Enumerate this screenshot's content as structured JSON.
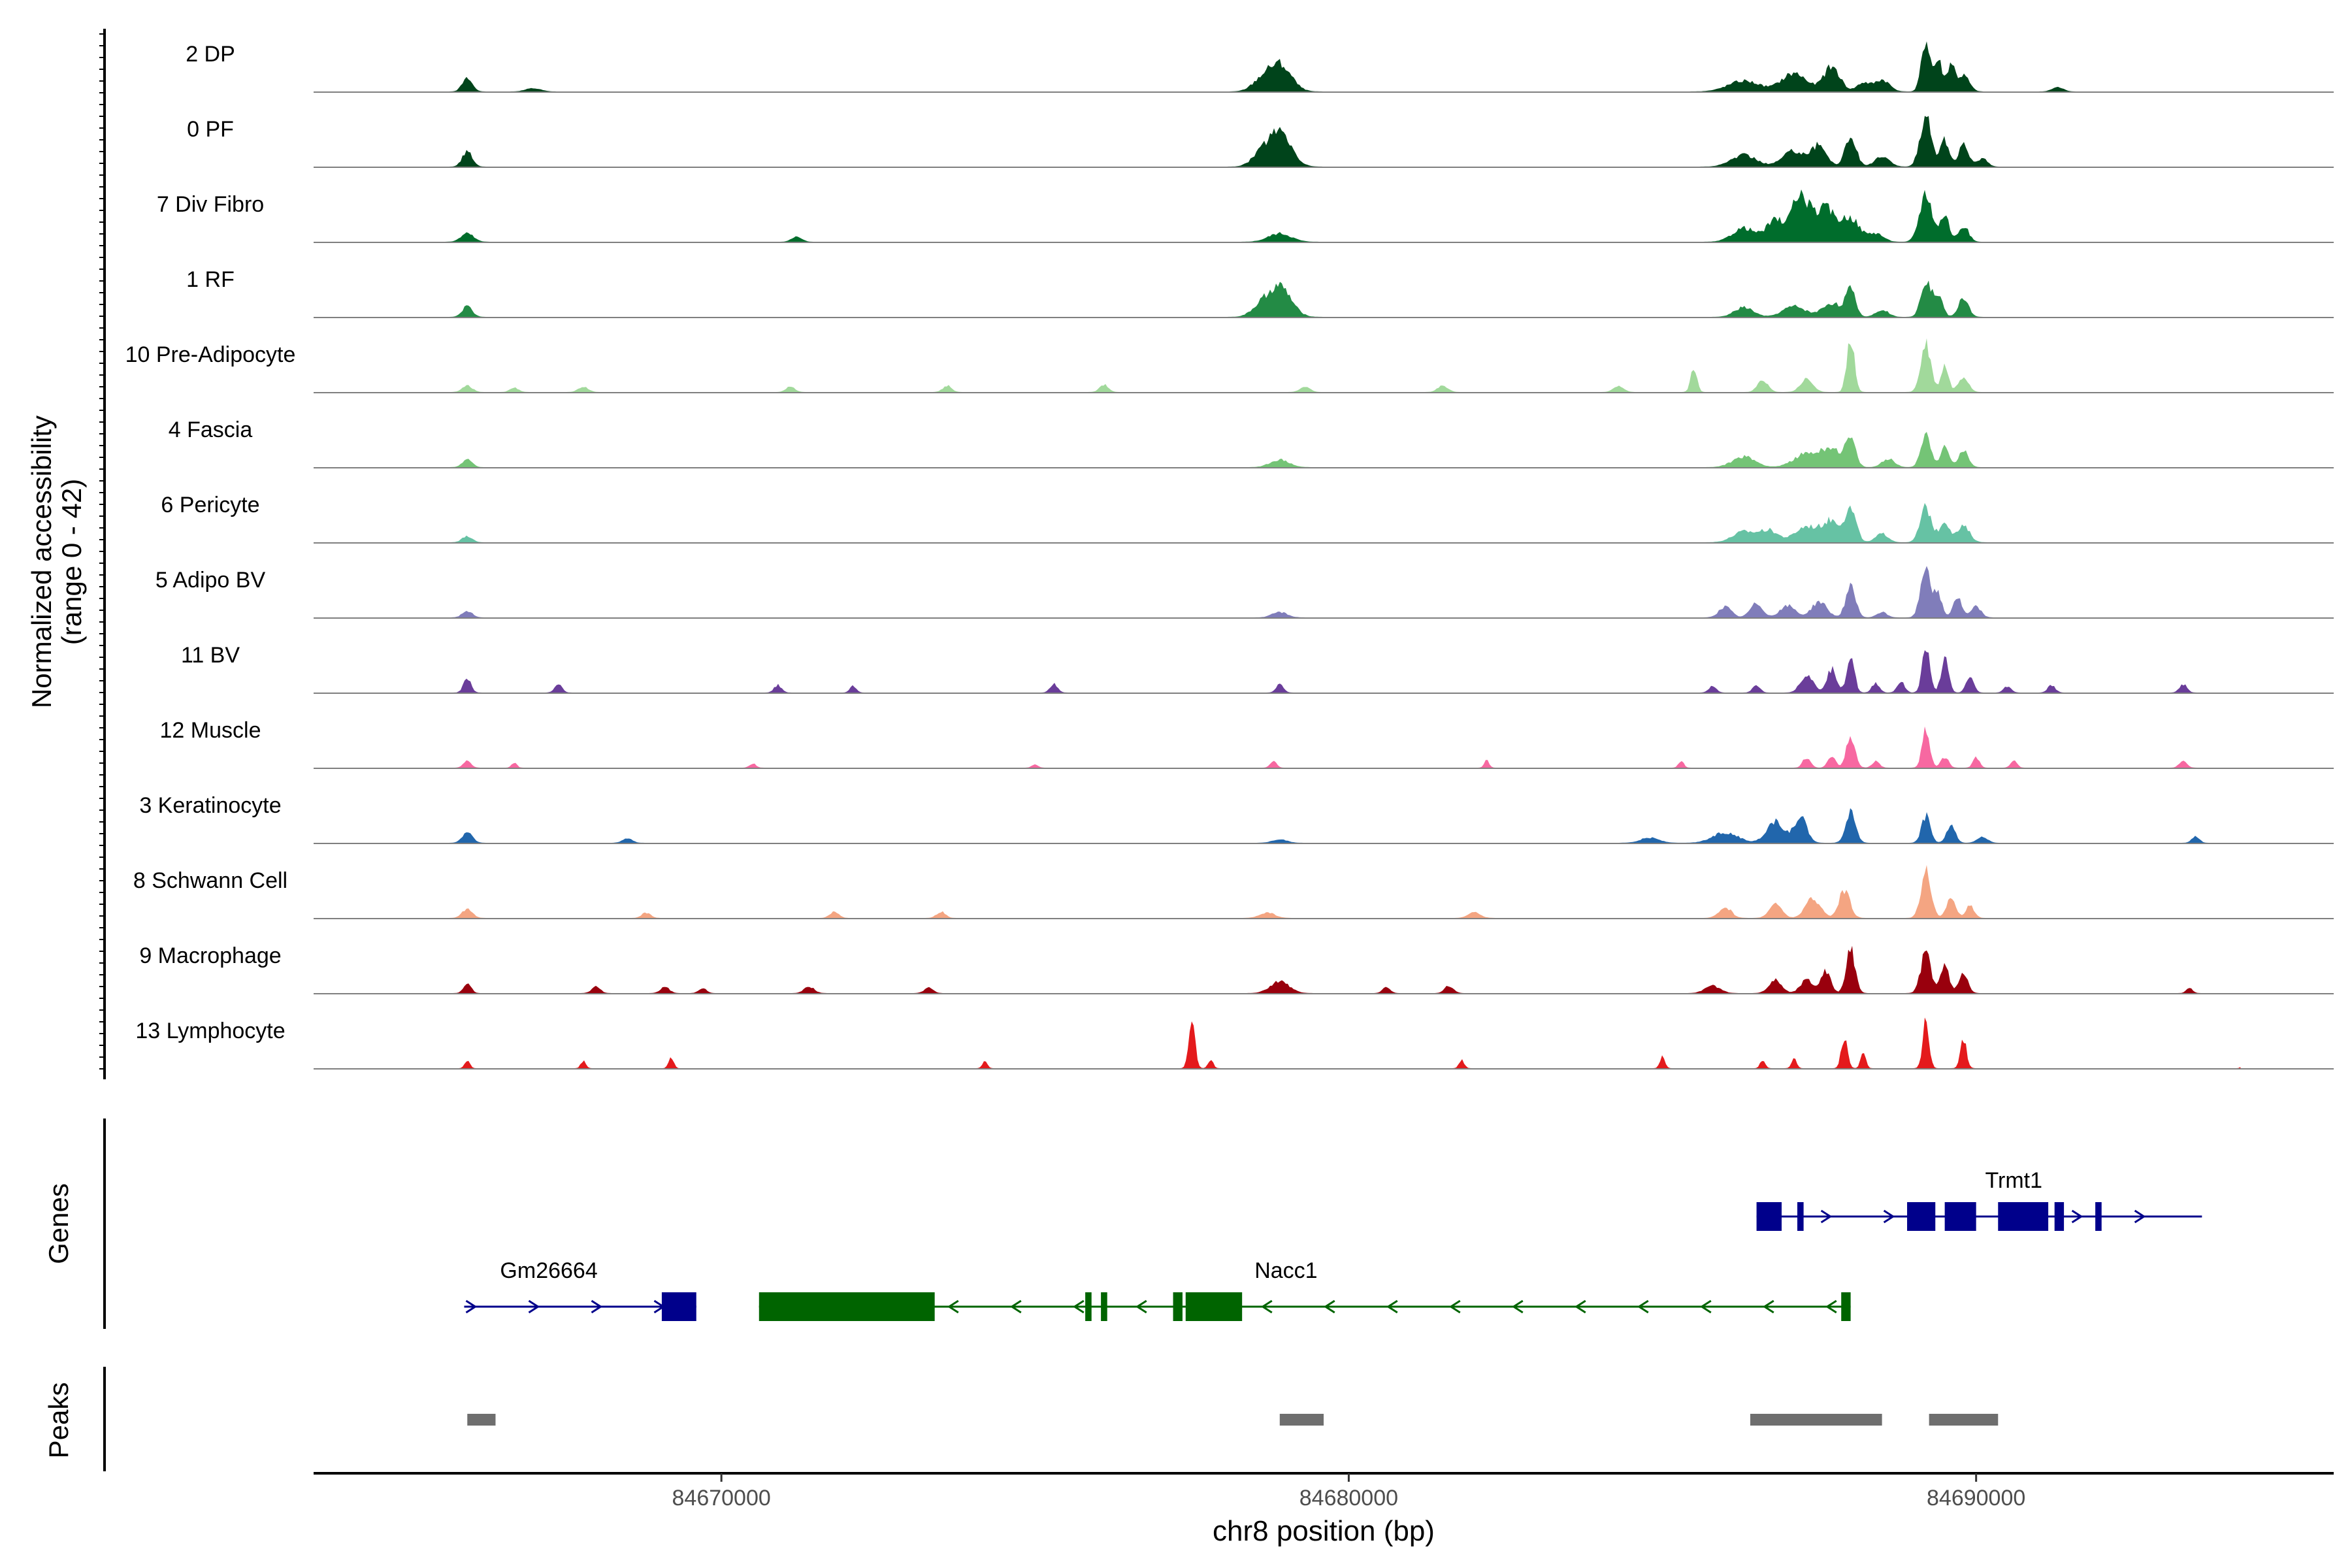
{
  "chart_data": {
    "type": "area",
    "title": "",
    "region": {
      "chrom": "chr8",
      "start": 84663500,
      "end": 84695700
    },
    "xlabel": "chr8 position (bp)",
    "ylabel": "Normalized accessibility",
    "ylabel_range": "(range 0 - 42)",
    "ylim": [
      0,
      42
    ],
    "x_ticks": [
      84670000,
      84680000,
      84690000
    ],
    "x_tick_labels": [
      "84670000",
      "84680000",
      "84690000"
    ],
    "panel_labels": {
      "genes": "Genes",
      "peaks": "Peaks"
    },
    "tracks": [
      {
        "name": "2 DP",
        "color": "#00441b",
        "peaks": [
          [
            84665950,
            0.24,
            80
          ],
          [
            84667000,
            0.06,
            120
          ],
          [
            84678900,
            0.5,
            180
          ],
          [
            84678600,
            0.18,
            150
          ],
          [
            84686300,
            0.2,
            250
          ],
          [
            84687100,
            0.34,
            200
          ],
          [
            84687700,
            0.46,
            130
          ],
          [
            84688500,
            0.22,
            120
          ],
          [
            84688200,
            0.16,
            100
          ],
          [
            84689200,
            0.96,
            70
          ],
          [
            84689400,
            0.58,
            60
          ],
          [
            84689600,
            0.52,
            60
          ],
          [
            84689800,
            0.3,
            90
          ],
          [
            84691300,
            0.08,
            90
          ]
        ]
      },
      {
        "name": "0 PF",
        "color": "#00441b",
        "peaks": [
          [
            84665950,
            0.28,
            80
          ],
          [
            84678900,
            0.62,
            180
          ],
          [
            84678600,
            0.2,
            150
          ],
          [
            84686300,
            0.22,
            200
          ],
          [
            84687100,
            0.3,
            180
          ],
          [
            84687500,
            0.38,
            120
          ],
          [
            84688000,
            0.56,
            90
          ],
          [
            84688500,
            0.18,
            120
          ],
          [
            84689200,
            1.0,
            90
          ],
          [
            84689500,
            0.5,
            70
          ],
          [
            84689800,
            0.4,
            80
          ],
          [
            84690100,
            0.16,
            80
          ]
        ]
      },
      {
        "name": "7 Div Fibro",
        "color": "#006d2c",
        "peaks": [
          [
            84665950,
            0.16,
            100
          ],
          [
            84671200,
            0.1,
            80
          ],
          [
            84678900,
            0.16,
            180
          ],
          [
            84686300,
            0.26,
            180
          ],
          [
            84686800,
            0.4,
            140
          ],
          [
            84687200,
            0.86,
            140
          ],
          [
            84687600,
            0.62,
            160
          ],
          [
            84688000,
            0.44,
            140
          ],
          [
            84688400,
            0.16,
            120
          ],
          [
            84689200,
            0.92,
            100
          ],
          [
            84689500,
            0.52,
            70
          ],
          [
            84689800,
            0.3,
            80
          ]
        ]
      },
      {
        "name": "1 RF",
        "color": "#238b45",
        "peaks": [
          [
            84665950,
            0.2,
            80
          ],
          [
            84678900,
            0.56,
            180
          ],
          [
            84678600,
            0.18,
            150
          ],
          [
            84686300,
            0.18,
            150
          ],
          [
            84687100,
            0.2,
            180
          ],
          [
            84687700,
            0.26,
            150
          ],
          [
            84688000,
            0.48,
            80
          ],
          [
            84688500,
            0.14,
            100
          ],
          [
            84689200,
            0.72,
            80
          ],
          [
            84689400,
            0.4,
            70
          ],
          [
            84689800,
            0.36,
            80
          ]
        ]
      },
      {
        "name": "10 Pre-Adipocyte",
        "color": "#a1d99b",
        "peaks": [
          [
            84665950,
            0.12,
            80
          ],
          [
            84666700,
            0.08,
            70
          ],
          [
            84667800,
            0.1,
            80
          ],
          [
            84671100,
            0.1,
            70
          ],
          [
            84673600,
            0.12,
            70
          ],
          [
            84676100,
            0.14,
            70
          ],
          [
            84679300,
            0.1,
            80
          ],
          [
            84681500,
            0.12,
            80
          ],
          [
            84684300,
            0.12,
            80
          ],
          [
            84685500,
            0.44,
            50
          ],
          [
            84686600,
            0.24,
            80
          ],
          [
            84687300,
            0.24,
            100
          ],
          [
            84688000,
            1.0,
            60
          ],
          [
            84689200,
            0.9,
            80
          ],
          [
            84689500,
            0.5,
            60
          ],
          [
            84689800,
            0.3,
            80
          ]
        ]
      },
      {
        "name": "4 Fascia",
        "color": "#74c476",
        "peaks": [
          [
            84665950,
            0.14,
            80
          ],
          [
            84678900,
            0.14,
            150
          ],
          [
            84686300,
            0.2,
            180
          ],
          [
            84687300,
            0.26,
            200
          ],
          [
            84687700,
            0.34,
            150
          ],
          [
            84688000,
            0.5,
            80
          ],
          [
            84688600,
            0.16,
            100
          ],
          [
            84689200,
            0.62,
            80
          ],
          [
            84689500,
            0.36,
            70
          ],
          [
            84689800,
            0.3,
            80
          ]
        ]
      },
      {
        "name": "6 Pericyte",
        "color": "#66c2a4",
        "peaks": [
          [
            84665950,
            0.12,
            80
          ],
          [
            84686300,
            0.2,
            180
          ],
          [
            84686700,
            0.22,
            150
          ],
          [
            84687300,
            0.3,
            180
          ],
          [
            84687700,
            0.4,
            140
          ],
          [
            84688000,
            0.6,
            90
          ],
          [
            84688500,
            0.16,
            100
          ],
          [
            84689200,
            0.66,
            90
          ],
          [
            84689500,
            0.4,
            80
          ],
          [
            84689800,
            0.3,
            100
          ]
        ]
      },
      {
        "name": "5 Adipo BV",
        "color": "#807dba",
        "peaks": [
          [
            84665950,
            0.12,
            80
          ],
          [
            84678900,
            0.1,
            120
          ],
          [
            84686000,
            0.2,
            100
          ],
          [
            84686500,
            0.26,
            100
          ],
          [
            84687000,
            0.22,
            120
          ],
          [
            84687500,
            0.3,
            120
          ],
          [
            84688000,
            0.56,
            80
          ],
          [
            84688500,
            0.1,
            80
          ],
          [
            84689200,
            1.0,
            80
          ],
          [
            84689400,
            0.4,
            60
          ],
          [
            84689700,
            0.38,
            70
          ],
          [
            84690000,
            0.2,
            80
          ]
        ]
      },
      {
        "name": "11 BV",
        "color": "#6a3d9a",
        "peaks": [
          [
            84665950,
            0.26,
            60
          ],
          [
            84667400,
            0.16,
            60
          ],
          [
            84670900,
            0.14,
            60
          ],
          [
            84672100,
            0.12,
            50
          ],
          [
            84675300,
            0.16,
            60
          ],
          [
            84678900,
            0.16,
            60
          ],
          [
            84685800,
            0.12,
            60
          ],
          [
            84686500,
            0.14,
            60
          ],
          [
            84687300,
            0.34,
            100
          ],
          [
            84687700,
            0.44,
            80
          ],
          [
            84688000,
            0.7,
            60
          ],
          [
            84688400,
            0.18,
            60
          ],
          [
            84688800,
            0.2,
            60
          ],
          [
            84689200,
            0.84,
            60
          ],
          [
            84689500,
            0.62,
            60
          ],
          [
            84689900,
            0.3,
            60
          ],
          [
            84690500,
            0.12,
            60
          ],
          [
            84691200,
            0.14,
            60
          ],
          [
            84693300,
            0.16,
            60
          ]
        ]
      },
      {
        "name": "12 Muscle",
        "color": "#f768a1",
        "peaks": [
          [
            84665950,
            0.14,
            60
          ],
          [
            84666700,
            0.1,
            40
          ],
          [
            84670500,
            0.08,
            50
          ],
          [
            84675000,
            0.06,
            50
          ],
          [
            84678800,
            0.12,
            50
          ],
          [
            84682200,
            0.14,
            40
          ],
          [
            84685300,
            0.14,
            40
          ],
          [
            84687300,
            0.2,
            60
          ],
          [
            84687700,
            0.24,
            60
          ],
          [
            84688000,
            0.6,
            70
          ],
          [
            84688400,
            0.12,
            60
          ],
          [
            84689200,
            0.74,
            60
          ],
          [
            84689500,
            0.2,
            60
          ],
          [
            84690000,
            0.2,
            50
          ],
          [
            84690600,
            0.14,
            50
          ],
          [
            84693300,
            0.14,
            60
          ]
        ]
      },
      {
        "name": "3 Keratinocyte",
        "color": "#2166ac",
        "peaks": [
          [
            84665950,
            0.2,
            80
          ],
          [
            84668500,
            0.08,
            80
          ],
          [
            84678900,
            0.06,
            120
          ],
          [
            84684800,
            0.1,
            150
          ],
          [
            84686000,
            0.2,
            200
          ],
          [
            84686800,
            0.4,
            140
          ],
          [
            84687200,
            0.48,
            100
          ],
          [
            84688000,
            0.6,
            80
          ],
          [
            84689200,
            0.5,
            70
          ],
          [
            84689600,
            0.32,
            70
          ],
          [
            84690100,
            0.12,
            80
          ],
          [
            84693500,
            0.12,
            60
          ]
        ]
      },
      {
        "name": "8 Schwann Cell",
        "color": "#f4a582",
        "peaks": [
          [
            84665950,
            0.18,
            80
          ],
          [
            84668800,
            0.1,
            70
          ],
          [
            84671800,
            0.12,
            70
          ],
          [
            84673500,
            0.12,
            70
          ],
          [
            84678700,
            0.1,
            120
          ],
          [
            84682000,
            0.1,
            100
          ],
          [
            84686000,
            0.2,
            100
          ],
          [
            84686800,
            0.26,
            100
          ],
          [
            84687400,
            0.36,
            120
          ],
          [
            84687900,
            0.5,
            90
          ],
          [
            84689200,
            0.9,
            80
          ],
          [
            84689600,
            0.4,
            70
          ],
          [
            84689900,
            0.22,
            70
          ]
        ]
      },
      {
        "name": "9 Macrophage",
        "color": "#99000d",
        "peaks": [
          [
            84665950,
            0.18,
            60
          ],
          [
            84668000,
            0.12,
            70
          ],
          [
            84669100,
            0.12,
            70
          ],
          [
            84669700,
            0.1,
            60
          ],
          [
            84671400,
            0.12,
            80
          ],
          [
            84673300,
            0.1,
            70
          ],
          [
            84678900,
            0.22,
            150
          ],
          [
            84680600,
            0.12,
            60
          ],
          [
            84681600,
            0.14,
            70
          ],
          [
            84685800,
            0.14,
            120
          ],
          [
            84686800,
            0.26,
            100
          ],
          [
            84687300,
            0.26,
            100
          ],
          [
            84687600,
            0.4,
            80
          ],
          [
            84688000,
            0.84,
            70
          ],
          [
            84689200,
            0.76,
            80
          ],
          [
            84689500,
            0.5,
            70
          ],
          [
            84689800,
            0.4,
            70
          ],
          [
            84693400,
            0.1,
            50
          ]
        ]
      },
      {
        "name": "13 Lymphocyte",
        "color": "#e41a1c",
        "peaks": [
          [
            84665950,
            0.14,
            40
          ],
          [
            84667800,
            0.14,
            40
          ],
          [
            84669200,
            0.2,
            40
          ],
          [
            84674200,
            0.14,
            40
          ],
          [
            84677500,
            0.88,
            50
          ],
          [
            84677800,
            0.16,
            40
          ],
          [
            84681800,
            0.16,
            40
          ],
          [
            84685000,
            0.22,
            40
          ],
          [
            84686600,
            0.16,
            40
          ],
          [
            84687100,
            0.2,
            40
          ],
          [
            84687900,
            0.56,
            50
          ],
          [
            84688200,
            0.34,
            40
          ],
          [
            84689200,
            0.88,
            50
          ],
          [
            84689800,
            0.52,
            50
          ],
          [
            84694300,
            0.24,
            40
          ]
        ]
      }
    ],
    "genes": [
      {
        "name": "Trmt1",
        "strand": "+",
        "color": "#00008b",
        "start": 84686500,
        "end": 84693600,
        "exons": [
          [
            84686500,
            84686900
          ],
          [
            84687150,
            84687250
          ],
          [
            84688900,
            84689350
          ],
          [
            84689500,
            84690000
          ],
          [
            84690350,
            84691150
          ],
          [
            84691250,
            84691400
          ],
          [
            84691900,
            84692000
          ]
        ]
      },
      {
        "name": "Gm26664",
        "strand": "+",
        "color": "#00008b",
        "start": 84665900,
        "end": 84669600,
        "exons": [
          [
            84669050,
            84669600
          ]
        ]
      },
      {
        "name": "Nacc1",
        "strand": "-",
        "color": "#006400",
        "start": 84670600,
        "end": 84688000,
        "exons": [
          [
            84670600,
            84673400
          ],
          [
            84675800,
            84675900
          ],
          [
            84676050,
            84676150
          ],
          [
            84677200,
            84677350
          ],
          [
            84677400,
            84678300
          ],
          [
            84687850,
            84688000
          ]
        ]
      }
    ],
    "peak_regions": [
      [
        84665950,
        84666400
      ],
      [
        84678900,
        84679600
      ],
      [
        84686400,
        84688500
      ],
      [
        84689250,
        84690350
      ]
    ]
  }
}
